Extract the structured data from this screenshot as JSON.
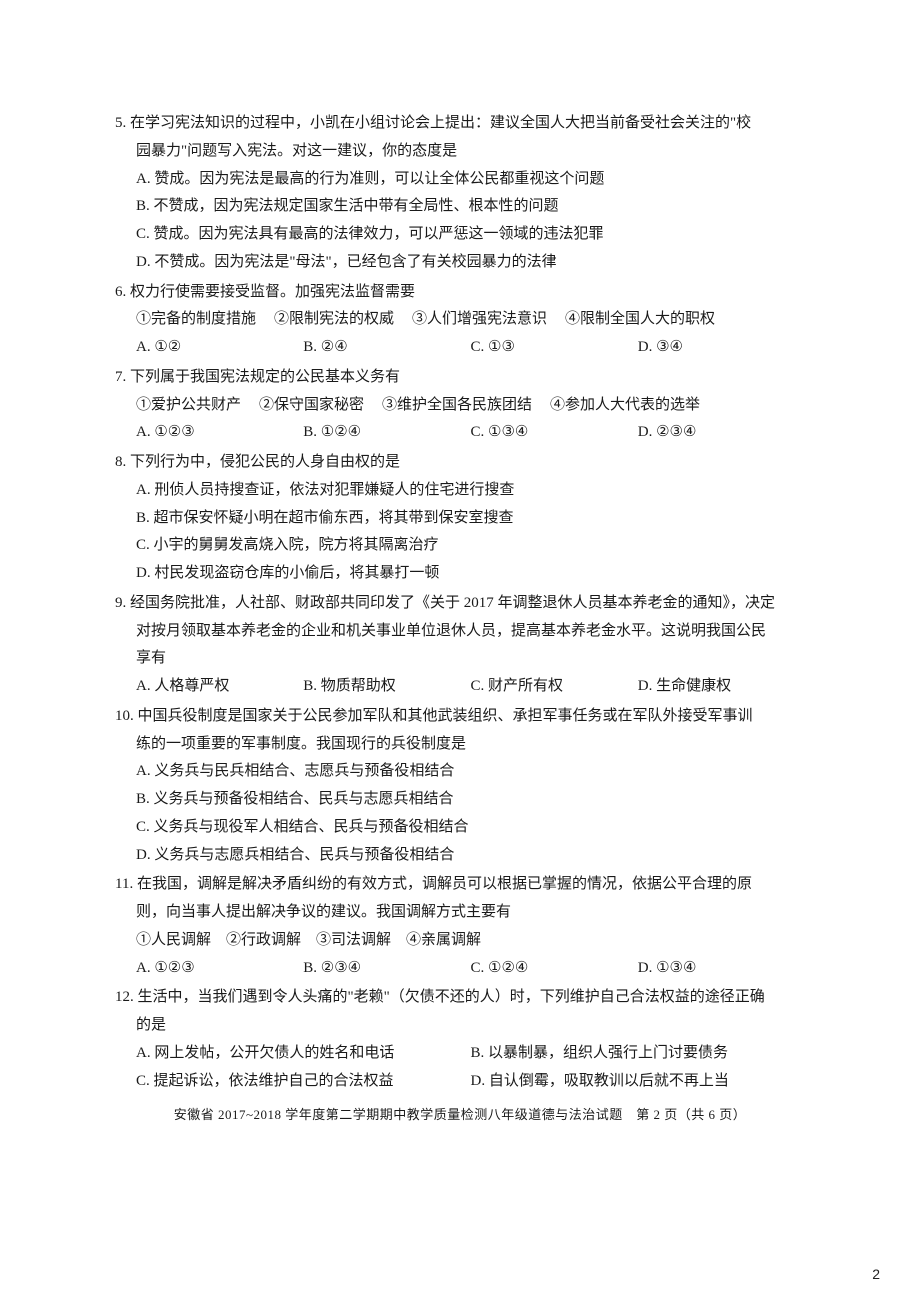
{
  "q5": {
    "stem1": "5. 在学习宪法知识的过程中，小凯在小组讨论会上提出：建议全国人大把当前备受社会关注的\"校",
    "stem2": "园暴力\"问题写入宪法。对这一建议，你的态度是",
    "A": "A. 赞成。因为宪法是最高的行为准则，可以让全体公民都重视这个问题",
    "B": "B. 不赞成，因为宪法规定国家生活中带有全局性、根本性的问题",
    "C": "C. 赞成。因为宪法具有最高的法律效力，可以严惩这一领域的违法犯罪",
    "D": "D. 不赞成。因为宪法是\"母法\"，已经包含了有关校园暴力的法律"
  },
  "q6": {
    "stem": "6. 权力行使需要接受监督。加强宪法监督需要",
    "s1": "①完备的制度措施",
    "s2": "②限制宪法的权威",
    "s3": "③人们增强宪法意识",
    "s4": "④限制全国人大的职权",
    "A": "A. ①②",
    "B": "B. ②④",
    "C": "C. ①③",
    "D": "D. ③④"
  },
  "q7": {
    "stem": "7. 下列属于我国宪法规定的公民基本义务有",
    "s1": "①爱护公共财产",
    "s2": "②保守国家秘密",
    "s3": "③维护全国各民族团结",
    "s4": "④参加人大代表的选举",
    "A": "A. ①②③",
    "B": "B. ①②④",
    "C": "C. ①③④",
    "D": "D. ②③④"
  },
  "q8": {
    "stem": "8. 下列行为中，侵犯公民的人身自由权的是",
    "A": "A. 刑侦人员持搜查证，依法对犯罪嫌疑人的住宅进行搜查",
    "B": "B. 超市保安怀疑小明在超市偷东西，将其带到保安室搜查",
    "C": "C. 小宇的舅舅发高烧入院，院方将其隔离治疗",
    "D": "D. 村民发现盗窃仓库的小偷后，将其暴打一顿"
  },
  "q9": {
    "stem1": "9. 经国务院批准，人社部、财政部共同印发了《关于 2017 年调整退休人员基本养老金的通知》，决定",
    "stem2": "对按月领取基本养老金的企业和机关事业单位退休人员，提高基本养老金水平。这说明我国公民",
    "stem3": "享有",
    "A": "A. 人格尊严权",
    "B": "B. 物质帮助权",
    "C": "C. 财产所有权",
    "D": "D. 生命健康权"
  },
  "q10": {
    "stem1": "10. 中国兵役制度是国家关于公民参加军队和其他武装组织、承担军事任务或在军队外接受军事训",
    "stem2": "练的一项重要的军事制度。我国现行的兵役制度是",
    "A": "A. 义务兵与民兵相结合、志愿兵与预备役相结合",
    "B": "B. 义务兵与预备役相结合、民兵与志愿兵相结合",
    "C": "C. 义务兵与现役军人相结合、民兵与预备役相结合",
    "D": "D. 义务兵与志愿兵相结合、民兵与预备役相结合"
  },
  "q11": {
    "stem1": "11. 在我国，调解是解决矛盾纠纷的有效方式，调解员可以根据已掌握的情况，依据公平合理的原",
    "stem2": "则，向当事人提出解决争议的建议。我国调解方式主要有",
    "subs": "①人民调解　②行政调解　③司法调解　④亲属调解",
    "A": "A. ①②③",
    "B": "B. ②③④",
    "C": "C. ①②④",
    "D": "D. ①③④"
  },
  "q12": {
    "stem1": "12. 生活中，当我们遇到令人头痛的\"老赖\"（欠债不还的人）时，下列维护自己合法权益的途径正确",
    "stem2": "的是",
    "A": "A. 网上发帖，公开欠债人的姓名和电话",
    "B": "B. 以暴制暴，组织人强行上门讨要债务",
    "C": "C. 提起诉讼，依法维护自己的合法权益",
    "D": "D. 自认倒霉，吸取教训以后就不再上当"
  },
  "footer": "安徽省 2017~2018 学年度第二学期期中教学质量检测八年级道德与法治试题　第 2 页（共 6 页）",
  "pageNum": "2"
}
